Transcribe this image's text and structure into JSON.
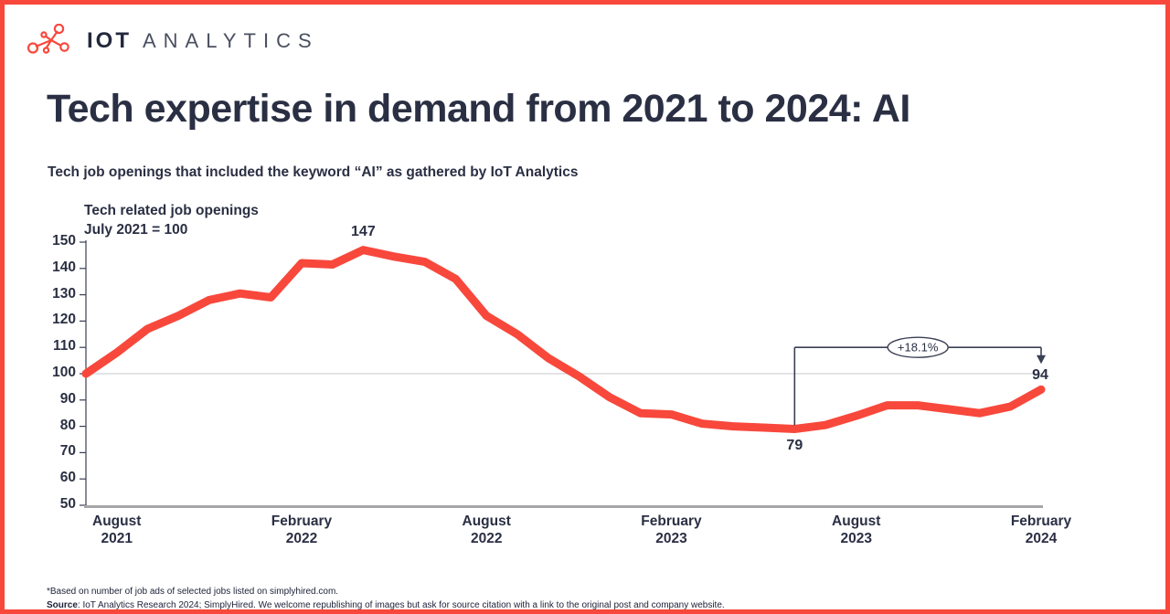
{
  "brand": {
    "iot": "IOT",
    "analytics": "ANALYTICS",
    "accent_color": "#F8483C"
  },
  "header": {
    "title": "Tech expertise in demand from 2021 to 2024: AI",
    "subtitle": "Tech job openings that included the keyword “AI” as gathered by IoT Analytics"
  },
  "chart_data": {
    "type": "line",
    "title": "Tech related job openings",
    "index_note": "July 2021 = 100",
    "ylim": [
      50,
      150
    ],
    "y_ticks": [
      50,
      60,
      70,
      80,
      90,
      100,
      110,
      120,
      130,
      140,
      150
    ],
    "baseline_value": 100,
    "grid": "single horizontal line at 100",
    "months": [
      "Jul 2021",
      "Aug 2021",
      "Sep 2021",
      "Oct 2021",
      "Nov 2021",
      "Dec 2021",
      "Jan 2022",
      "Feb 2022",
      "Mar 2022",
      "Apr 2022",
      "May 2022",
      "Jun 2022",
      "Jul 2022",
      "Aug 2022",
      "Sep 2022",
      "Oct 2022",
      "Nov 2022",
      "Dec 2022",
      "Jan 2023",
      "Feb 2023",
      "Mar 2023",
      "Apr 2023",
      "May 2023",
      "Jun 2023",
      "Jul 2023",
      "Aug 2023",
      "Sep 2023",
      "Oct 2023",
      "Nov 2023",
      "Dec 2023",
      "Jan 2024",
      "Feb 2024"
    ],
    "series": [
      {
        "name": "Tech job openings index (July 2021 = 100)",
        "color": "#F8483C",
        "values": [
          100,
          108,
          117,
          122,
          128,
          130.5,
          129,
          142,
          141.5,
          147,
          144.5,
          142.5,
          136,
          122,
          115,
          106,
          99,
          91,
          85,
          84.5,
          81,
          80,
          79.5,
          79,
          80.5,
          84,
          88,
          88,
          86.5,
          85,
          87.5,
          94
        ]
      }
    ],
    "x_ticks": [
      {
        "index": 1,
        "line1": "August",
        "line2": "2021"
      },
      {
        "index": 7,
        "line1": "February",
        "line2": "2022"
      },
      {
        "index": 13,
        "line1": "August",
        "line2": "2022"
      },
      {
        "index": 19,
        "line1": "February",
        "line2": "2023"
      },
      {
        "index": 25,
        "line1": "August",
        "line2": "2023"
      },
      {
        "index": 31,
        "line1": "February",
        "line2": "2024"
      }
    ],
    "point_labels": [
      {
        "index": 9,
        "text": "147",
        "placement": "above"
      },
      {
        "index": 23,
        "text": "79",
        "placement": "below"
      },
      {
        "index": 31,
        "text": "94",
        "placement": "end"
      }
    ],
    "annotation": {
      "label": "+18.1%",
      "from_index": 23,
      "to_index": 31,
      "bracket_value": 110
    },
    "colors": {
      "line": "#F8483C",
      "axis": "#3A4054",
      "baseline": "#A6A6A9",
      "gridline": "#D2D3D5",
      "text": "#2A2F43"
    }
  },
  "footer": {
    "note1": "*Based on number of job ads of selected jobs listed on simplyhired.com.",
    "source_bold": "Source",
    "source_rest": ": IoT Analytics Research 2024; SimplyHired. We welcome republishing of images but ask for source citation with a link to the original post and company website."
  }
}
